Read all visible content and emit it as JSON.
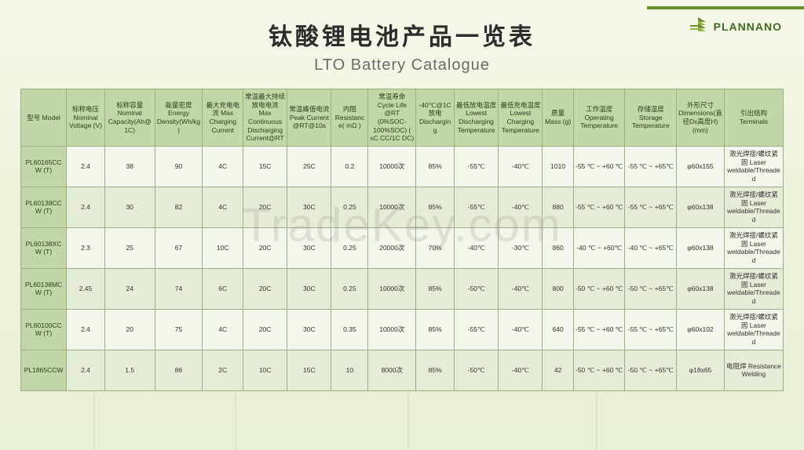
{
  "brand": {
    "name": "PLANNANO"
  },
  "title": {
    "cn": "钛酸锂电池产品一览表",
    "en": "LTO Battery Catalogue"
  },
  "watermark": "TradeKey.com",
  "styling": {
    "header_bg": "#c2d6a8",
    "row_odd_bg": "#f3f6ea",
    "row_even_bg": "#e6edd6",
    "border_color": "#9bb082",
    "page_bg_top": "#f5f8e8",
    "page_bg_bottom": "#e8f0d5",
    "title_cn_fontsize": 30,
    "title_en_fontsize": 20,
    "table_fontsize": 8.5,
    "logo_color": "#3f6b1f"
  },
  "columns": [
    {
      "key": "model",
      "label": "型号 Model"
    },
    {
      "key": "nv",
      "label": "标称电压 Nominal Voltage (V)"
    },
    {
      "key": "cap",
      "label": "标称容量Nominal Capacity(Ah@1C)"
    },
    {
      "key": "ed",
      "label": "能量密度Energy Density(Wh/kg)"
    },
    {
      "key": "mcc",
      "label": "最大充电电流 Max Charging Current"
    },
    {
      "key": "mcdc",
      "label": "常温最大持续放电电流 Max Continuous Discharging Current@RT"
    },
    {
      "key": "pc",
      "label": "常温峰值电流 Peak Current @RT@10s"
    },
    {
      "key": "ir",
      "label": "内阻 Resistance( mΩ )"
    },
    {
      "key": "cl",
      "label": "常温寿命 Cycle Life @RT (0%SOC-100%SOC) ( xC CC/1C DC)"
    },
    {
      "key": "d40",
      "label": "-40℃@1C 放电 Discharging"
    },
    {
      "key": "ldt",
      "label": "最低放电温度 Lowest Discharging Temperature"
    },
    {
      "key": "lct",
      "label": "最低充电温度 Lowest Charging Temperature"
    },
    {
      "key": "mass",
      "label": "质量 Mass (g)"
    },
    {
      "key": "ot",
      "label": "工作温度 Operating Temperature"
    },
    {
      "key": "st",
      "label": "存储温度 Storage Temperature"
    },
    {
      "key": "dim",
      "label": "外形尺寸 Dimensions(直径Dx高度H) (mm)"
    },
    {
      "key": "term",
      "label": "引出结构Terminals"
    }
  ],
  "rows": [
    {
      "model": "PL60165CCW (T)",
      "nv": "2.4",
      "cap": "38",
      "ed": "90",
      "mcc": "4C",
      "mcdc": "15C",
      "pc": "25C",
      "ir": "0.2",
      "cl": "10000次",
      "d40": "85%",
      "ldt": "-55℃",
      "lct": "-40℃",
      "mass": "1010",
      "ot": "-55 ℃ ~ +60 ℃",
      "st": "-55 ℃ ~ +65℃",
      "dim": "φ60x155",
      "term": "激光焊接/螺纹紧固 Laser weldable/Threaded"
    },
    {
      "model": "PL60138CCW (T)",
      "nv": "2.4",
      "cap": "30",
      "ed": "82",
      "mcc": "4C",
      "mcdc": "20C",
      "pc": "30C",
      "ir": "0.25",
      "cl": "10000次",
      "d40": "85%",
      "ldt": "-55℃",
      "lct": "-40℃",
      "mass": "880",
      "ot": "-55 ℃ ~ +60 ℃",
      "st": "-55 ℃ ~ +65℃",
      "dim": "φ60x138",
      "term": "激光焊接/螺纹紧固 Laser weldable/Threaded"
    },
    {
      "model": "PL60138XCW (T)",
      "nv": "2.3",
      "cap": "25",
      "ed": "67",
      "mcc": "10C",
      "mcdc": "20C",
      "pc": "30C",
      "ir": "0.25",
      "cl": "20000次",
      "d40": "70%",
      "ldt": "-40℃",
      "lct": "-30℃",
      "mass": "860",
      "ot": "-40 ℃ ~ +60℃",
      "st": "-40 ℃ ~ +65℃",
      "dim": "φ60x138",
      "term": "激光焊接/螺纹紧固 Laser weldable/Threaded"
    },
    {
      "model": "PL60138MCW (T)",
      "nv": "2.45",
      "cap": "24",
      "ed": "74",
      "mcc": "6C",
      "mcdc": "20C",
      "pc": "30C",
      "ir": "0.25",
      "cl": "10000次",
      "d40": "85%",
      "ldt": "-50℃",
      "lct": "-40℃",
      "mass": "800",
      "ot": "-50 ℃ ~ +60 ℃",
      "st": "-50 ℃ ~ +65℃",
      "dim": "φ60x138",
      "term": "激光焊接/螺纹紧固 Laser weldable/Threaded"
    },
    {
      "model": "PL60100CCW (T)",
      "nv": "2.4",
      "cap": "20",
      "ed": "75",
      "mcc": "4C",
      "mcdc": "20C",
      "pc": "30C",
      "ir": "0.35",
      "cl": "10000次",
      "d40": "85%",
      "ldt": "-55℃",
      "lct": "-40℃",
      "mass": "640",
      "ot": "-55 ℃ ~ +60 ℃",
      "st": "-55 ℃ ~ +65℃",
      "dim": "φ60x102",
      "term": "激光焊接/螺纹紧固 Laser weldable/Threaded"
    },
    {
      "model": "PL1865CCW",
      "nv": "2.4",
      "cap": "1.5",
      "ed": "86",
      "mcc": "2C",
      "mcdc": "10C",
      "pc": "15C",
      "ir": "10",
      "cl": "8000次",
      "d40": "85%",
      "ldt": "-50℃",
      "lct": "-40℃",
      "mass": "42",
      "ot": "-50 ℃ ~ +60 ℃",
      "st": "-50 ℃ ~ +65℃",
      "dim": "φ18x65",
      "term": "电阻焊 Resistance Welding"
    }
  ]
}
